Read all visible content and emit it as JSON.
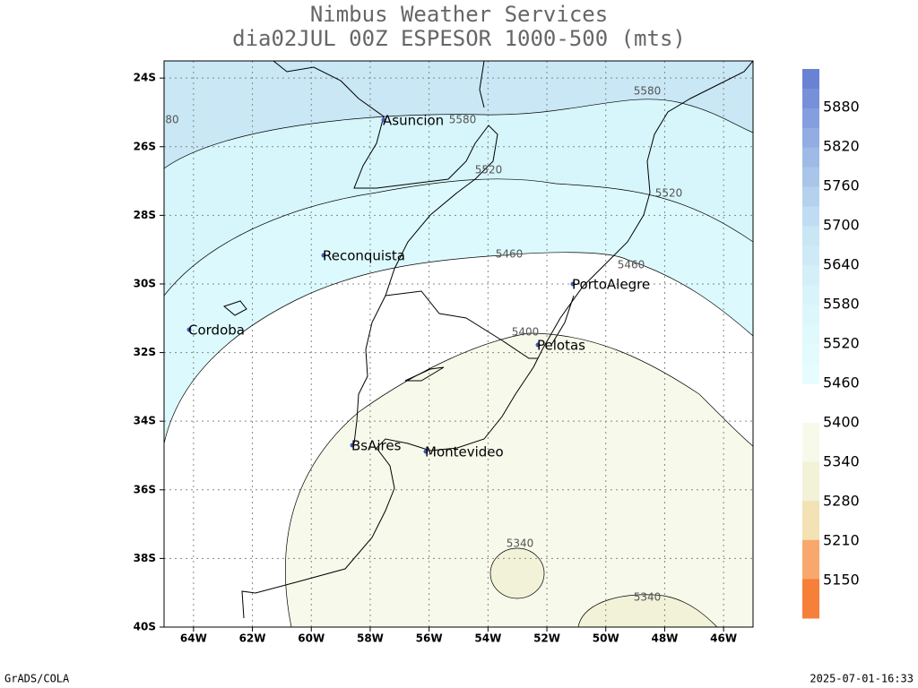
{
  "header": {
    "title": "Nimbus Weather Services",
    "subtitle": "dia02JUL 00Z ESPESOR 1000-500 (mts)"
  },
  "map": {
    "xlim": [
      -65,
      -45
    ],
    "ylim": [
      -40,
      -23.5
    ],
    "xticks": [
      {
        "value": -64,
        "label": "64W"
      },
      {
        "value": -62,
        "label": "62W"
      },
      {
        "value": -60,
        "label": "60W"
      },
      {
        "value": -58,
        "label": "58W"
      },
      {
        "value": -56,
        "label": "56W"
      },
      {
        "value": -54,
        "label": "54W"
      },
      {
        "value": -52,
        "label": "52W"
      },
      {
        "value": -50,
        "label": "50W"
      },
      {
        "value": -48,
        "label": "48W"
      },
      {
        "value": -46,
        "label": "46W"
      }
    ],
    "yticks": [
      {
        "value": -24,
        "label": "24S"
      },
      {
        "value": -26,
        "label": "26S"
      },
      {
        "value": -28,
        "label": "28S"
      },
      {
        "value": -30,
        "label": "30S"
      },
      {
        "value": -32,
        "label": "32S"
      },
      {
        "value": -34,
        "label": "34S"
      },
      {
        "value": -36,
        "label": "36S"
      },
      {
        "value": -38,
        "label": "38S"
      },
      {
        "value": -40,
        "label": "40S"
      }
    ],
    "cities": [
      "Asuncion",
      "Reconquista",
      "Cordoba",
      "PortoAlegre",
      "Pelotas",
      "BsAires",
      "Montevideo"
    ],
    "contour_labels": [
      "5580",
      "80",
      "5580",
      "5520",
      "5520",
      "5460",
      "5460",
      "5400",
      "5340",
      "5340"
    ]
  },
  "colorbar": {
    "upper_labels": [
      5880,
      5820,
      5760,
      5700,
      5640,
      5580,
      5520,
      5460
    ],
    "upper_colors": [
      "#6a82d4",
      "#7890da",
      "#859edf",
      "#93ace3",
      "#a0bae7",
      "#aac5ea",
      "#b5d1ee",
      "#bfdcf2",
      "#c9e6f5",
      "#cfeaf7",
      "#d4eff8",
      "#d9f3fa",
      "#ddf6fb",
      "#e0f9fc",
      "#e3fbfd",
      "#e6fcfe"
    ],
    "lower_labels": [
      5400,
      5340,
      5280,
      5210,
      5150
    ],
    "lower_colors": [
      "#f7f9ea",
      "#f1f2d8",
      "#f2e2b4",
      "#f8a86c",
      "#f67f3a"
    ]
  },
  "footer": {
    "left": "GrADS/COLA",
    "right": "2025-07-01-16:33"
  }
}
